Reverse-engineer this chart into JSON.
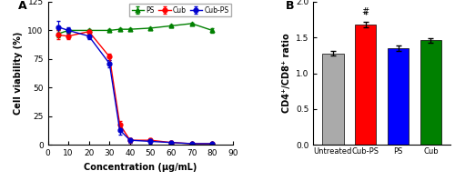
{
  "panel_a": {
    "x": [
      5,
      10,
      20,
      30,
      35,
      40,
      50,
      60,
      70,
      80
    ],
    "PS_y": [
      97,
      100,
      100,
      100,
      101,
      101,
      102,
      104,
      106,
      100
    ],
    "PS_err": [
      3,
      1,
      1,
      1,
      1,
      1,
      1,
      1,
      1,
      2
    ],
    "Cub_y": [
      96,
      95,
      99,
      77,
      18,
      4,
      4,
      2,
      1,
      1
    ],
    "Cub_err": [
      4,
      3,
      1,
      3,
      3,
      2,
      2,
      1,
      1,
      0.5
    ],
    "CubPS_y": [
      103,
      100,
      95,
      71,
      13,
      4,
      3,
      2,
      1,
      1
    ],
    "CubPS_err": [
      5,
      3,
      3,
      3,
      4,
      2,
      2,
      1,
      0.5,
      0.5
    ],
    "PS_color": "#008000",
    "Cub_color": "#FF0000",
    "CubPS_color": "#0000CD",
    "xlabel": "Concentration (μg/mL)",
    "ylabel": "Cell viability (%)",
    "xlim": [
      0,
      90
    ],
    "ylim": [
      0,
      125
    ],
    "yticks": [
      0,
      25,
      50,
      75,
      100,
      125
    ],
    "xticks": [
      0,
      10,
      20,
      30,
      40,
      50,
      60,
      70,
      80,
      90
    ],
    "title": "A"
  },
  "panel_b": {
    "categories": [
      "Untreated",
      "Cub-PS",
      "PS",
      "Cub"
    ],
    "values": [
      1.28,
      1.68,
      1.35,
      1.46
    ],
    "errors": [
      0.03,
      0.04,
      0.04,
      0.03
    ],
    "colors": [
      "#AAAAAA",
      "#FF0000",
      "#0000FF",
      "#008000"
    ],
    "ylabel": "CD4⁺/CD8⁺ ratio",
    "ylim": [
      0.0,
      2.0
    ],
    "yticks": [
      0.0,
      0.5,
      1.0,
      1.5,
      2.0
    ],
    "title": "B"
  }
}
